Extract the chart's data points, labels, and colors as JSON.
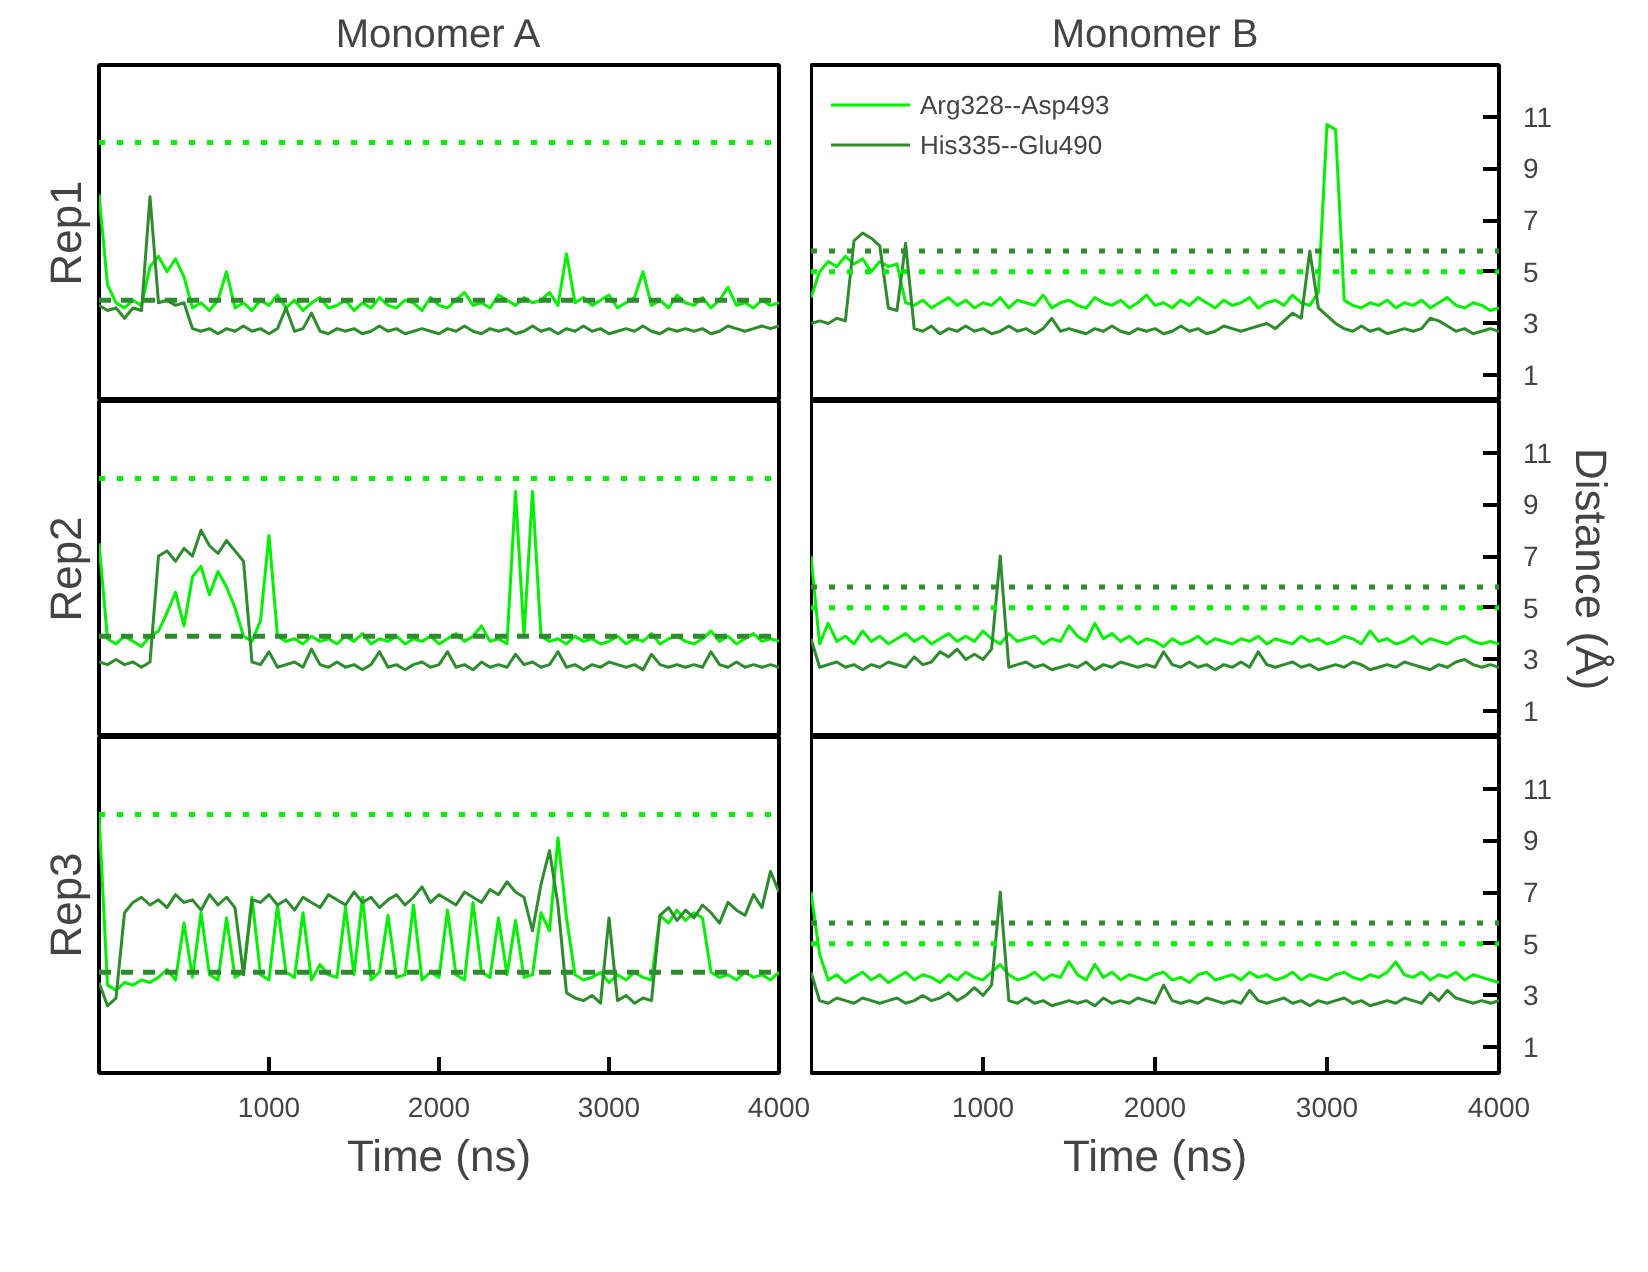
{
  "chart_data": [
    {
      "type": "line",
      "title": "Monomer A",
      "ylabel": "Rep1",
      "xlim": [
        0,
        4000
      ],
      "ylim": [
        0,
        13
      ],
      "tick_labels": false,
      "x": [
        0,
        50,
        100,
        150,
        200,
        250,
        300,
        350,
        400,
        450,
        500,
        550,
        600,
        650,
        700,
        750,
        800,
        850,
        900,
        950,
        1000,
        1050,
        1100,
        1150,
        1200,
        1250,
        1300,
        1350,
        1400,
        1450,
        1500,
        1550,
        1600,
        1650,
        1700,
        1750,
        1800,
        1850,
        1900,
        1950,
        2000,
        2050,
        2100,
        2150,
        2200,
        2250,
        2300,
        2350,
        2400,
        2450,
        2500,
        2550,
        2600,
        2650,
        2700,
        2750,
        2800,
        2850,
        2900,
        2950,
        3000,
        3050,
        3100,
        3150,
        3200,
        3250,
        3300,
        3350,
        3400,
        3450,
        3500,
        3550,
        3600,
        3650,
        3700,
        3750,
        3800,
        3850,
        3900,
        3950,
        4000
      ],
      "ref_lines": [
        {
          "axis": "y",
          "value": 10,
          "color": "#00f000",
          "line_style": "dotted"
        },
        {
          "axis": "y",
          "value": 3.9,
          "color": "#2e8b2e",
          "line_style": "dashed"
        }
      ],
      "series": [
        {
          "color": "#00f000",
          "values": [
            8.0,
            4.5,
            3.8,
            3.6,
            3.9,
            3.7,
            5.2,
            5.6,
            5.0,
            5.5,
            4.8,
            3.6,
            3.8,
            3.5,
            3.9,
            5.0,
            3.6,
            3.8,
            3.5,
            3.9,
            3.7,
            4.1,
            3.6,
            3.9,
            3.5,
            3.8,
            4.0,
            3.6,
            3.7,
            3.9,
            3.5,
            3.8,
            3.6,
            4.0,
            3.7,
            3.6,
            3.9,
            3.8,
            3.5,
            4.0,
            3.7,
            3.6,
            3.9,
            4.2,
            3.7,
            3.8,
            3.6,
            4.1,
            3.9,
            3.7,
            4.0,
            3.8,
            3.9,
            4.2,
            3.7,
            5.7,
            3.8,
            4.0,
            3.7,
            3.9,
            4.1,
            3.6,
            3.8,
            4.0,
            5.0,
            3.7,
            3.9,
            3.6,
            4.1,
            3.8,
            3.7,
            4.0,
            3.6,
            3.9,
            4.4,
            3.7,
            3.8,
            3.6,
            3.9,
            3.7,
            3.8
          ]
        },
        {
          "color": "#2e8b2e",
          "values": [
            3.7,
            3.5,
            3.6,
            3.2,
            3.6,
            3.5,
            7.9,
            3.8,
            3.9,
            3.7,
            3.8,
            2.8,
            2.7,
            2.8,
            2.6,
            2.8,
            2.7,
            2.9,
            2.7,
            2.8,
            2.6,
            2.8,
            3.6,
            2.7,
            2.8,
            3.4,
            2.7,
            2.6,
            2.8,
            2.7,
            2.8,
            2.6,
            2.7,
            2.9,
            2.7,
            2.8,
            2.6,
            2.7,
            2.8,
            2.7,
            2.6,
            2.8,
            2.7,
            2.9,
            2.7,
            2.6,
            2.8,
            2.7,
            2.8,
            2.6,
            2.7,
            2.9,
            2.7,
            2.8,
            2.6,
            2.8,
            2.7,
            2.9,
            2.7,
            2.8,
            2.6,
            2.7,
            2.8,
            2.7,
            2.9,
            2.7,
            2.6,
            2.8,
            2.7,
            2.8,
            2.7,
            2.8,
            2.6,
            2.7,
            2.9,
            2.8,
            2.7,
            2.8,
            2.9,
            2.8,
            2.9
          ]
        }
      ]
    },
    {
      "type": "line",
      "title": "Monomer B",
      "xlim": [
        0,
        4000
      ],
      "ylim": [
        0,
        13
      ],
      "yticks": [
        1,
        3,
        5,
        7,
        9,
        11
      ],
      "tick_labels": "y",
      "legend": "top left",
      "x": [
        0,
        50,
        100,
        150,
        200,
        250,
        300,
        350,
        400,
        450,
        500,
        550,
        600,
        650,
        700,
        750,
        800,
        850,
        900,
        950,
        1000,
        1050,
        1100,
        1150,
        1200,
        1250,
        1300,
        1350,
        1400,
        1450,
        1500,
        1550,
        1600,
        1650,
        1700,
        1750,
        1800,
        1850,
        1900,
        1950,
        2000,
        2050,
        2100,
        2150,
        2200,
        2250,
        2300,
        2350,
        2400,
        2450,
        2500,
        2550,
        2600,
        2650,
        2700,
        2750,
        2800,
        2850,
        2900,
        2950,
        3000,
        3050,
        3100,
        3150,
        3200,
        3250,
        3300,
        3350,
        3400,
        3450,
        3500,
        3550,
        3600,
        3650,
        3700,
        3750,
        3800,
        3850,
        3900,
        3950,
        4000
      ],
      "ref_lines": [
        {
          "axis": "y",
          "value": 5.8,
          "color": "#2e8b2e",
          "line_style": "dotted"
        },
        {
          "axis": "y",
          "value": 5,
          "color": "#00f000",
          "line_style": "dotted"
        }
      ],
      "series": [
        {
          "name": "Arg328--Asp493",
          "color": "#00f000",
          "values": [
            4.0,
            5.0,
            5.4,
            5.2,
            5.6,
            5.3,
            5.5,
            5.0,
            5.4,
            5.2,
            5.3,
            3.8,
            3.7,
            3.9,
            3.6,
            3.8,
            4.0,
            3.7,
            3.9,
            3.6,
            3.8,
            3.7,
            4.0,
            3.6,
            3.9,
            3.8,
            3.7,
            4.1,
            3.6,
            3.8,
            3.9,
            3.7,
            3.6,
            4.0,
            3.8,
            3.7,
            3.9,
            3.6,
            3.8,
            4.1,
            3.7,
            3.8,
            3.6,
            3.9,
            3.7,
            4.0,
            3.8,
            3.6,
            3.9,
            3.7,
            3.8,
            4.0,
            3.6,
            3.8,
            3.9,
            3.7,
            4.1,
            3.8,
            3.7,
            4.2,
            10.7,
            10.5,
            3.9,
            3.7,
            3.6,
            3.8,
            3.7,
            3.9,
            3.6,
            3.8,
            3.7,
            3.9,
            3.6,
            3.8,
            4.0,
            3.7,
            3.6,
            3.8,
            3.7,
            3.5,
            3.6
          ]
        },
        {
          "name": "His335--Glu490",
          "color": "#2e8b2e",
          "values": [
            3.0,
            3.1,
            3.0,
            3.2,
            3.1,
            6.2,
            6.5,
            6.3,
            6.0,
            3.6,
            3.5,
            6.1,
            2.8,
            2.7,
            2.9,
            2.6,
            2.8,
            2.7,
            2.9,
            2.7,
            2.8,
            2.6,
            2.7,
            2.9,
            2.7,
            2.8,
            2.6,
            2.8,
            3.2,
            2.7,
            2.8,
            2.7,
            2.6,
            2.8,
            2.7,
            2.9,
            2.7,
            2.6,
            2.8,
            2.7,
            2.8,
            2.6,
            2.7,
            2.9,
            2.7,
            2.8,
            2.6,
            2.7,
            2.9,
            2.8,
            2.7,
            2.8,
            2.9,
            3.0,
            2.8,
            3.1,
            3.4,
            3.2,
            5.8,
            3.6,
            3.3,
            3.0,
            2.8,
            2.7,
            2.9,
            2.7,
            2.8,
            2.6,
            2.7,
            2.8,
            2.7,
            2.8,
            3.2,
            3.1,
            2.9,
            2.7,
            2.8,
            2.6,
            2.7,
            2.8,
            2.7
          ]
        }
      ]
    },
    {
      "type": "line",
      "ylabel": "Rep2",
      "xlim": [
        0,
        4000
      ],
      "ylim": [
        0,
        13
      ],
      "tick_labels": false,
      "x": [
        0,
        50,
        100,
        150,
        200,
        250,
        300,
        350,
        400,
        450,
        500,
        550,
        600,
        650,
        700,
        750,
        800,
        850,
        900,
        950,
        1000,
        1050,
        1100,
        1150,
        1200,
        1250,
        1300,
        1350,
        1400,
        1450,
        1500,
        1550,
        1600,
        1650,
        1700,
        1750,
        1800,
        1850,
        1900,
        1950,
        2000,
        2050,
        2100,
        2150,
        2200,
        2250,
        2300,
        2350,
        2400,
        2450,
        2500,
        2550,
        2600,
        2650,
        2700,
        2750,
        2800,
        2850,
        2900,
        2950,
        3000,
        3050,
        3100,
        3150,
        3200,
        3250,
        3300,
        3350,
        3400,
        3450,
        3500,
        3550,
        3600,
        3650,
        3700,
        3750,
        3800,
        3850,
        3900,
        3950,
        4000
      ],
      "ref_lines": [
        {
          "axis": "y",
          "value": 10,
          "color": "#00f000",
          "line_style": "dotted"
        },
        {
          "axis": "y",
          "value": 3.9,
          "color": "#2e8b2e",
          "line_style": "dashed"
        }
      ],
      "series": [
        {
          "color": "#00f000",
          "values": [
            7.5,
            3.8,
            3.6,
            3.9,
            3.7,
            3.5,
            3.9,
            4.1,
            4.8,
            5.6,
            4.3,
            6.2,
            6.6,
            5.5,
            6.4,
            5.8,
            5.0,
            3.9,
            3.7,
            4.5,
            7.8,
            3.9,
            3.7,
            3.8,
            3.6,
            3.9,
            3.7,
            3.8,
            3.6,
            3.9,
            3.7,
            4.0,
            3.6,
            3.8,
            3.7,
            3.9,
            3.6,
            3.8,
            3.7,
            3.9,
            3.6,
            3.8,
            4.0,
            3.7,
            3.9,
            4.3,
            3.7,
            3.8,
            3.6,
            9.5,
            3.9,
            9.5,
            3.9,
            3.7,
            3.8,
            3.6,
            3.9,
            3.7,
            3.8,
            3.6,
            3.7,
            3.9,
            3.6,
            3.8,
            3.7,
            4.0,
            3.6,
            3.8,
            3.9,
            3.7,
            3.6,
            3.8,
            4.1,
            3.7,
            3.9,
            3.6,
            3.8,
            4.0,
            3.7,
            3.8,
            3.7
          ]
        },
        {
          "color": "#2e8b2e",
          "values": [
            2.9,
            2.8,
            3.0,
            2.8,
            2.9,
            2.7,
            2.9,
            7.0,
            7.2,
            6.8,
            7.3,
            7.0,
            8.0,
            7.4,
            7.1,
            7.6,
            7.2,
            6.8,
            2.9,
            2.8,
            3.3,
            2.7,
            2.8,
            2.9,
            2.7,
            3.4,
            2.8,
            2.7,
            2.9,
            2.7,
            2.8,
            2.6,
            2.8,
            3.3,
            2.7,
            2.8,
            2.6,
            2.8,
            2.9,
            2.7,
            2.8,
            3.3,
            2.7,
            2.8,
            2.6,
            2.9,
            2.7,
            2.8,
            2.7,
            3.2,
            2.8,
            2.9,
            2.7,
            2.8,
            3.3,
            2.7,
            2.8,
            2.6,
            2.8,
            2.7,
            2.9,
            2.8,
            2.7,
            2.8,
            2.6,
            3.2,
            2.8,
            2.7,
            2.8,
            2.7,
            2.8,
            2.7,
            3.3,
            2.8,
            2.7,
            2.9,
            2.7,
            2.8,
            2.7,
            2.8,
            2.7
          ]
        }
      ]
    },
    {
      "type": "line",
      "ylabel": "Distance (Å)",
      "xlim": [
        0,
        4000
      ],
      "ylim": [
        0,
        13
      ],
      "yticks": [
        1,
        3,
        5,
        7,
        9,
        11
      ],
      "tick_labels": "y",
      "x": [
        0,
        50,
        100,
        150,
        200,
        250,
        300,
        350,
        400,
        450,
        500,
        550,
        600,
        650,
        700,
        750,
        800,
        850,
        900,
        950,
        1000,
        1050,
        1100,
        1150,
        1200,
        1250,
        1300,
        1350,
        1400,
        1450,
        1500,
        1550,
        1600,
        1650,
        1700,
        1750,
        1800,
        1850,
        1900,
        1950,
        2000,
        2050,
        2100,
        2150,
        2200,
        2250,
        2300,
        2350,
        2400,
        2450,
        2500,
        2550,
        2600,
        2650,
        2700,
        2750,
        2800,
        2850,
        2900,
        2950,
        3000,
        3050,
        3100,
        3150,
        3200,
        3250,
        3300,
        3350,
        3400,
        3450,
        3500,
        3550,
        3600,
        3650,
        3700,
        3750,
        3800,
        3850,
        3900,
        3950,
        4000
      ],
      "ref_lines": [
        {
          "axis": "y",
          "value": 5.8,
          "color": "#2e8b2e",
          "line_style": "dotted"
        },
        {
          "axis": "y",
          "value": 5,
          "color": "#00f000",
          "line_style": "dotted"
        }
      ],
      "series": [
        {
          "color": "#00f000",
          "values": [
            7.0,
            3.6,
            4.4,
            3.7,
            3.9,
            3.6,
            4.1,
            3.7,
            3.9,
            3.6,
            3.8,
            4.0,
            3.7,
            3.9,
            3.6,
            3.8,
            4.0,
            3.7,
            3.9,
            3.7,
            4.1,
            3.8,
            3.6,
            4.0,
            3.7,
            3.8,
            3.9,
            3.6,
            3.8,
            3.7,
            4.3,
            3.9,
            3.7,
            4.4,
            3.8,
            4.0,
            3.7,
            3.9,
            3.6,
            3.8,
            3.7,
            3.5,
            3.8,
            3.6,
            3.7,
            3.9,
            3.6,
            3.8,
            3.7,
            3.6,
            3.8,
            3.7,
            3.9,
            3.6,
            3.8,
            3.7,
            3.6,
            3.9,
            3.7,
            3.8,
            3.6,
            3.7,
            3.9,
            3.8,
            3.6,
            4.1,
            3.7,
            3.8,
            3.6,
            3.7,
            3.9,
            3.6,
            3.8,
            3.7,
            3.6,
            3.8,
            3.9,
            3.7,
            3.6,
            3.7,
            3.6
          ]
        },
        {
          "color": "#2e8b2e",
          "values": [
            3.8,
            2.7,
            2.8,
            2.9,
            2.7,
            2.8,
            2.6,
            2.8,
            2.7,
            2.9,
            2.8,
            2.7,
            3.1,
            2.8,
            2.9,
            3.3,
            3.1,
            3.4,
            3.0,
            3.2,
            3.0,
            3.4,
            7.0,
            2.7,
            2.8,
            2.9,
            2.7,
            2.8,
            2.6,
            2.7,
            2.8,
            2.7,
            2.9,
            2.6,
            2.8,
            2.7,
            2.9,
            2.8,
            2.7,
            2.8,
            2.7,
            3.3,
            2.8,
            2.7,
            2.9,
            2.7,
            2.8,
            2.6,
            2.8,
            2.7,
            2.9,
            2.7,
            3.3,
            2.8,
            2.7,
            2.8,
            2.9,
            2.7,
            2.8,
            2.6,
            2.7,
            2.8,
            2.7,
            2.9,
            2.8,
            2.6,
            2.7,
            2.8,
            2.7,
            2.9,
            2.8,
            2.7,
            2.6,
            2.8,
            2.7,
            2.9,
            3.0,
            2.8,
            2.7,
            2.8,
            2.7
          ]
        }
      ]
    },
    {
      "type": "line",
      "xlabel": "Time (ns)",
      "ylabel": "Rep3",
      "xlim": [
        0,
        4000
      ],
      "xticks": [
        1000,
        2000,
        3000,
        4000
      ],
      "ylim": [
        0,
        13
      ],
      "tick_labels": "x",
      "x": [
        0,
        50,
        100,
        150,
        200,
        250,
        300,
        350,
        400,
        450,
        500,
        550,
        600,
        650,
        700,
        750,
        800,
        850,
        900,
        950,
        1000,
        1050,
        1100,
        1150,
        1200,
        1250,
        1300,
        1350,
        1400,
        1450,
        1500,
        1550,
        1600,
        1650,
        1700,
        1750,
        1800,
        1850,
        1900,
        1950,
        2000,
        2050,
        2100,
        2150,
        2200,
        2250,
        2300,
        2350,
        2400,
        2450,
        2500,
        2550,
        2600,
        2650,
        2700,
        2750,
        2800,
        2850,
        2900,
        2950,
        3000,
        3050,
        3100,
        3150,
        3200,
        3250,
        3300,
        3350,
        3400,
        3450,
        3500,
        3550,
        3600,
        3650,
        3700,
        3750,
        3800,
        3850,
        3900,
        3950,
        4000
      ],
      "ref_lines": [
        {
          "axis": "y",
          "value": 10,
          "color": "#00f000",
          "line_style": "dotted"
        },
        {
          "axis": "y",
          "value": 3.9,
          "color": "#2e8b2e",
          "line_style": "dashed"
        }
      ],
      "series": [
        {
          "color": "#00f000",
          "values": [
            10.0,
            3.4,
            3.2,
            3.5,
            3.4,
            3.6,
            3.5,
            3.7,
            4.0,
            3.6,
            5.8,
            3.7,
            6.2,
            3.8,
            3.6,
            6.0,
            3.7,
            3.9,
            6.8,
            3.8,
            3.6,
            6.5,
            3.9,
            3.7,
            6.2,
            3.6,
            4.2,
            3.8,
            3.7,
            6.4,
            3.8,
            6.8,
            3.6,
            3.9,
            6.1,
            3.7,
            3.8,
            6.5,
            3.6,
            3.9,
            3.7,
            6.3,
            3.8,
            3.6,
            6.6,
            3.9,
            3.7,
            6.0,
            3.8,
            5.9,
            3.7,
            3.8,
            6.2,
            5.5,
            9.1,
            6.0,
            3.8,
            3.6,
            3.7,
            3.9,
            3.5,
            3.8,
            3.6,
            3.9,
            3.7,
            3.6,
            6.1,
            5.8,
            6.3,
            5.9,
            6.2,
            6.0,
            3.9,
            3.7,
            3.8,
            3.6,
            3.9,
            3.7,
            3.8,
            3.6,
            3.9
          ]
        },
        {
          "color": "#2e8b2e",
          "values": [
            3.5,
            2.6,
            2.9,
            6.2,
            6.6,
            6.8,
            6.5,
            6.7,
            6.4,
            6.9,
            6.6,
            6.7,
            6.3,
            6.9,
            6.5,
            6.8,
            6.4,
            3.8,
            6.7,
            6.6,
            6.9,
            6.5,
            6.7,
            6.3,
            6.8,
            6.6,
            6.4,
            6.9,
            6.7,
            6.5,
            7.0,
            6.6,
            6.8,
            6.4,
            6.7,
            6.9,
            6.5,
            6.8,
            7.2,
            6.6,
            6.9,
            6.7,
            6.5,
            7.0,
            6.8,
            6.6,
            7.1,
            6.9,
            7.4,
            7.0,
            6.8,
            5.5,
            7.3,
            8.6,
            6.5,
            3.1,
            2.9,
            2.8,
            3.0,
            2.7,
            6.0,
            2.8,
            3.0,
            2.7,
            2.9,
            2.8,
            6.1,
            6.4,
            5.9,
            6.3,
            6.0,
            6.5,
            6.2,
            5.8,
            6.6,
            6.3,
            6.1,
            6.9,
            6.4,
            7.8,
            7.0
          ]
        }
      ]
    },
    {
      "type": "line",
      "xlabel": "Time (ns)",
      "xlim": [
        0,
        4000
      ],
      "xticks": [
        1000,
        2000,
        3000,
        4000
      ],
      "ylim": [
        0,
        13
      ],
      "yticks": [
        1,
        3,
        5,
        7,
        9,
        11
      ],
      "x": [
        0,
        50,
        100,
        150,
        200,
        250,
        300,
        350,
        400,
        450,
        500,
        550,
        600,
        650,
        700,
        750,
        800,
        850,
        900,
        950,
        1000,
        1050,
        1100,
        1150,
        1200,
        1250,
        1300,
        1350,
        1400,
        1450,
        1500,
        1550,
        1600,
        1650,
        1700,
        1750,
        1800,
        1850,
        1900,
        1950,
        2000,
        2050,
        2100,
        2150,
        2200,
        2250,
        2300,
        2350,
        2400,
        2450,
        2500,
        2550,
        2600,
        2650,
        2700,
        2750,
        2800,
        2850,
        2900,
        2950,
        3000,
        3050,
        3100,
        3150,
        3200,
        3250,
        3300,
        3350,
        3400,
        3450,
        3500,
        3550,
        3600,
        3650,
        3700,
        3750,
        3800,
        3850,
        3900,
        3950,
        4000
      ],
      "ref_lines": [
        {
          "axis": "y",
          "value": 5.8,
          "color": "#2e8b2e",
          "line_style": "dotted"
        },
        {
          "axis": "y",
          "value": 5,
          "color": "#00f000",
          "line_style": "dotted"
        }
      ],
      "series": [
        {
          "color": "#00f000",
          "values": [
            7.0,
            4.6,
            3.6,
            3.8,
            3.5,
            3.7,
            3.9,
            3.6,
            3.8,
            3.5,
            3.7,
            3.9,
            3.6,
            3.8,
            3.7,
            3.5,
            3.8,
            3.6,
            3.9,
            3.7,
            3.6,
            3.9,
            4.2,
            3.8,
            3.6,
            3.7,
            3.9,
            3.6,
            3.8,
            3.7,
            4.3,
            3.8,
            3.6,
            4.2,
            3.7,
            3.9,
            3.6,
            3.8,
            3.7,
            3.6,
            3.8,
            3.9,
            3.6,
            3.7,
            3.5,
            3.8,
            3.9,
            3.6,
            3.7,
            3.8,
            3.6,
            3.9,
            3.7,
            3.8,
            3.6,
            3.7,
            3.9,
            3.6,
            3.8,
            3.7,
            3.6,
            3.8,
            3.9,
            3.7,
            3.6,
            3.8,
            3.7,
            3.9,
            4.3,
            3.8,
            3.7,
            3.9,
            3.6,
            3.8,
            3.7,
            3.9,
            3.6,
            3.8,
            3.7,
            3.6,
            3.5
          ]
        },
        {
          "color": "#2e8b2e",
          "values": [
            3.9,
            2.8,
            2.7,
            2.9,
            2.8,
            2.7,
            2.9,
            2.8,
            2.7,
            2.8,
            2.9,
            2.7,
            2.8,
            3.0,
            2.8,
            2.9,
            3.1,
            2.8,
            3.0,
            3.3,
            3.0,
            3.4,
            7.0,
            2.8,
            2.7,
            2.9,
            2.7,
            2.8,
            2.6,
            2.7,
            2.8,
            2.7,
            2.8,
            2.6,
            2.9,
            2.7,
            2.8,
            2.7,
            2.9,
            2.8,
            2.7,
            3.4,
            2.8,
            2.7,
            2.8,
            2.7,
            2.9,
            2.8,
            2.7,
            2.8,
            2.7,
            3.2,
            2.8,
            2.7,
            2.8,
            2.9,
            2.7,
            2.8,
            2.6,
            2.8,
            2.7,
            2.8,
            2.9,
            2.7,
            2.8,
            2.6,
            2.7,
            2.8,
            2.7,
            2.9,
            2.8,
            2.7,
            3.1,
            2.8,
            3.2,
            2.9,
            2.8,
            2.7,
            2.8,
            2.7,
            2.8
          ]
        }
      ]
    }
  ]
}
